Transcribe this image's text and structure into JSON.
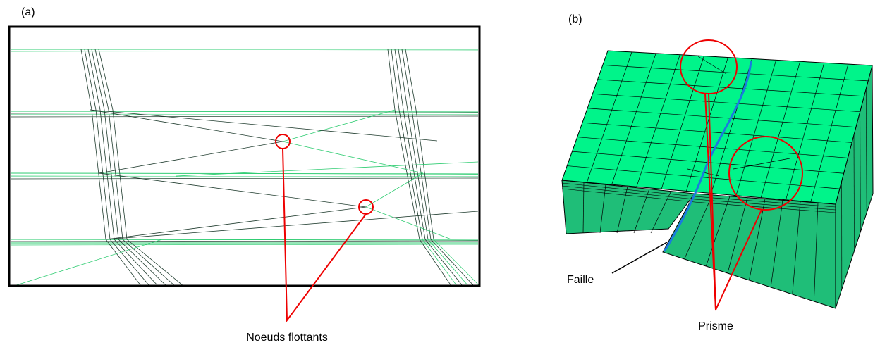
{
  "panel_a": {
    "label": "(a)",
    "annotation": "Noeuds flottants"
  },
  "panel_b": {
    "label": "(b)",
    "fault_label": "Faille",
    "prism_label": "Prisme"
  }
}
